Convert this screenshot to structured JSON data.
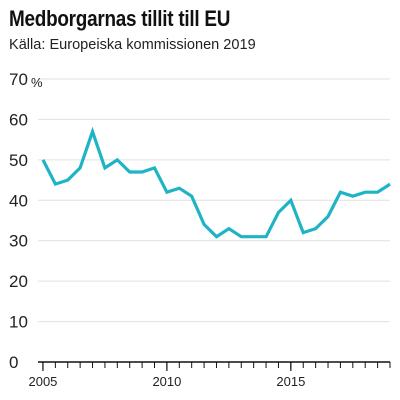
{
  "chart_data": {
    "type": "line",
    "title": "Medborgarnas tillit till EU",
    "subtitle": "Källa: Europeiska kommissionen 2019",
    "ylim": [
      0,
      70
    ],
    "yticks": [
      0,
      10,
      20,
      30,
      40,
      50,
      60,
      70
    ],
    "y_unit_label": "%",
    "xlim": [
      2004.8,
      2019.0
    ],
    "xticks": [
      2005,
      2010,
      2015
    ],
    "grid": true,
    "line_color": "#1fb3c6",
    "series": [
      {
        "x": [
          2005.0,
          2005.5,
          2006.0,
          2006.5,
          2007.0,
          2007.5,
          2008.0,
          2008.5,
          2009.0,
          2009.5,
          2010.0,
          2010.5,
          2011.0,
          2011.5,
          2012.0,
          2012.5,
          2013.0,
          2013.5,
          2014.0,
          2014.5,
          2015.0,
          2015.5,
          2016.0,
          2016.5,
          2017.0,
          2017.5,
          2018.0,
          2018.5,
          2019.0
        ],
        "values": [
          50,
          44,
          45,
          48,
          57,
          48,
          50,
          47,
          47,
          48,
          42,
          43,
          41,
          34,
          31,
          33,
          31,
          31,
          31,
          37,
          40,
          32,
          33,
          36,
          42,
          41,
          42,
          42,
          44
        ]
      }
    ]
  }
}
